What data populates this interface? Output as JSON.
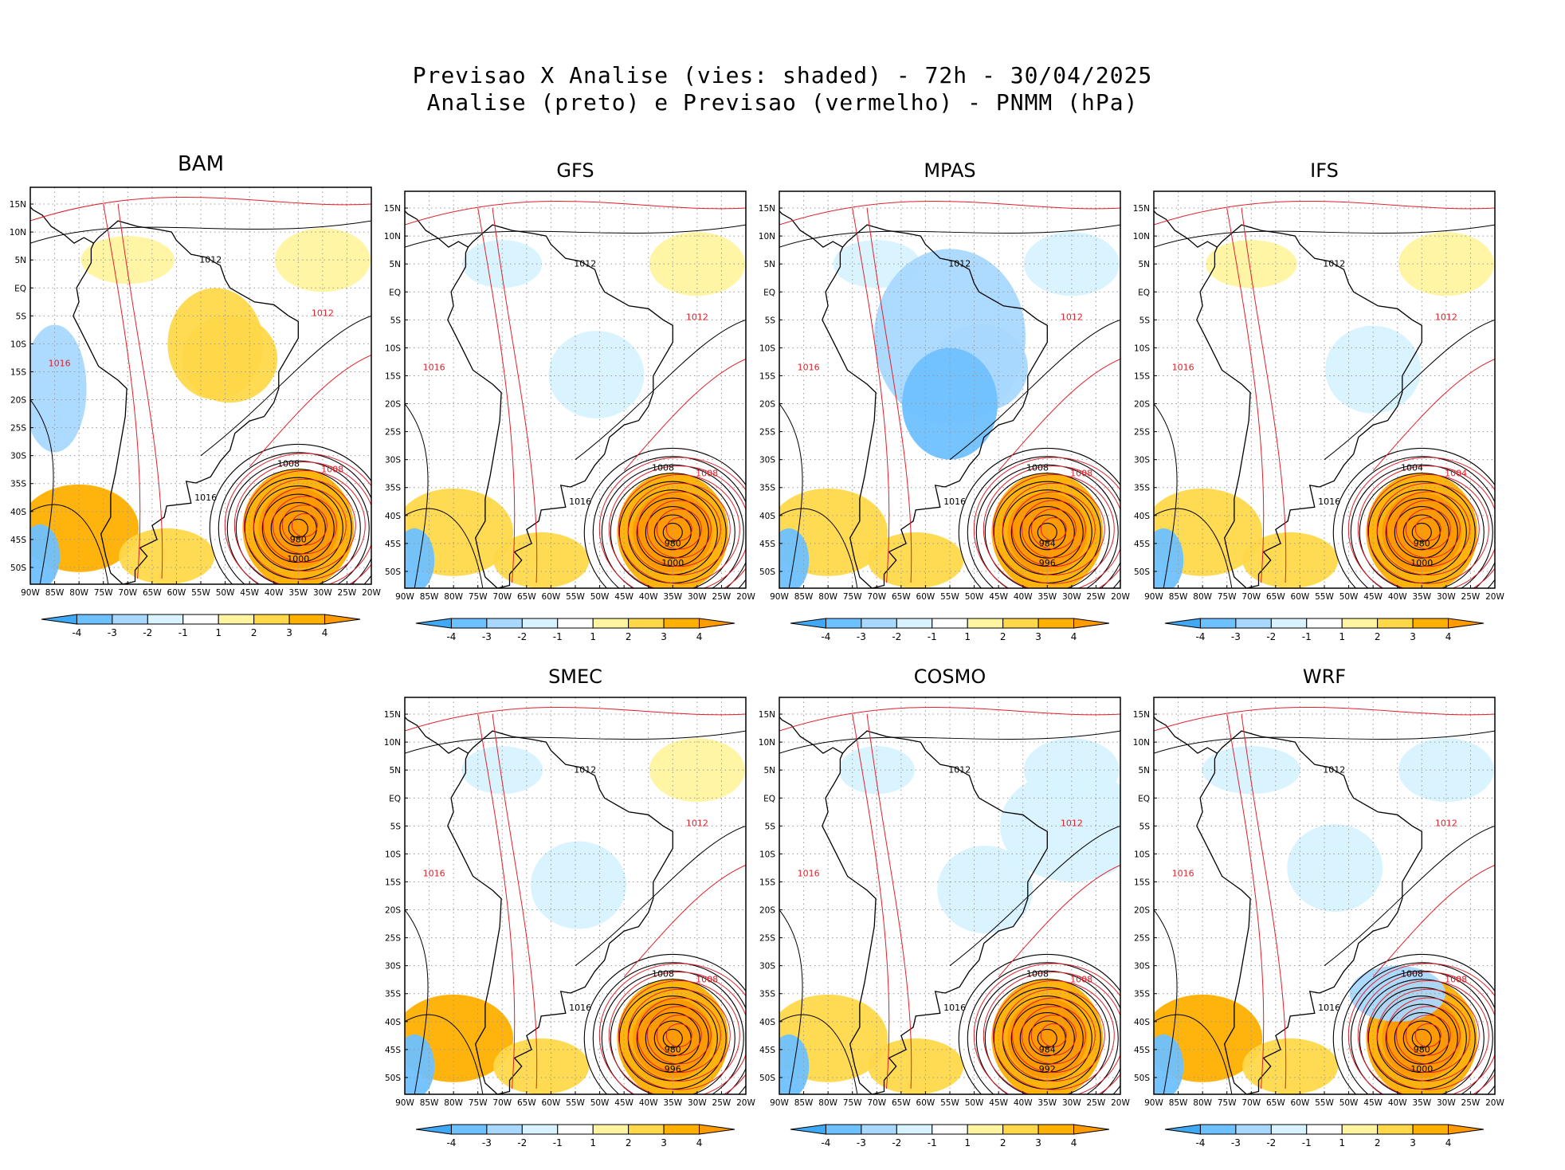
{
  "title": {
    "line1": "Previsao X Analise (vies: shaded) - 72h - 30/04/2025",
    "line2": "Analise (preto) e Previsao (vermelho) - PNMM (hPa)"
  },
  "lat_labels": [
    "15N",
    "10N",
    "5N",
    "EQ",
    "5S",
    "10S",
    "15S",
    "20S",
    "25S",
    "30S",
    "35S",
    "40S",
    "45S",
    "50S"
  ],
  "lon_labels": [
    "90W",
    "85W",
    "80W",
    "75W",
    "70W",
    "65W",
    "60W",
    "55W",
    "50W",
    "45W",
    "40W",
    "35W",
    "30W",
    "25W",
    "20W"
  ],
  "colorbar": {
    "labels": [
      "-4",
      "-3",
      "-2",
      "-1",
      "1",
      "2",
      "3",
      "4"
    ],
    "colors": [
      "#3fa9f5",
      "#6ec1ff",
      "#a9d8ff",
      "#d8f3ff",
      "#ffffff",
      "#fff4a0",
      "#ffd84a",
      "#ffb000",
      "#ff9a00"
    ]
  },
  "colors": {
    "analysis": "#000000",
    "forecast": "#e0202a"
  },
  "panels": [
    {
      "name": "BAM",
      "labels": {
        "a1": "1012",
        "a2": "1016",
        "a3": "1008",
        "a4": "980",
        "a5": "1000",
        "f1": "1012",
        "f2": "1016",
        "f3": "1008"
      }
    },
    {
      "name": "GFS",
      "labels": {
        "a1": "1012",
        "a2": "1016",
        "a3": "1008",
        "a4": "980",
        "a5": "1000",
        "f1": "1012",
        "f2": "1016",
        "f3": "1008"
      }
    },
    {
      "name": "MPAS",
      "labels": {
        "a1": "1012",
        "a2": "1016",
        "a3": "1008",
        "a4": "984",
        "a5": "996",
        "f1": "1012",
        "f2": "1016",
        "f3": "1008"
      }
    },
    {
      "name": "IFS",
      "labels": {
        "a1": "1012",
        "a2": "1016",
        "a3": "1004",
        "a4": "980",
        "a5": "1000",
        "f1": "1012",
        "f2": "1016",
        "f3": "1004"
      }
    },
    {
      "name": "SMEC",
      "labels": {
        "a1": "1012",
        "a2": "1016",
        "a3": "1008",
        "a4": "980",
        "a5": "996",
        "f1": "1012",
        "f2": "1016",
        "f3": "1008"
      }
    },
    {
      "name": "COSMO",
      "labels": {
        "a1": "1012",
        "a2": "1016",
        "a3": "1008",
        "a4": "984",
        "a5": "992",
        "f1": "1012",
        "f2": "1016",
        "f3": "1008"
      }
    },
    {
      "name": "WRF",
      "labels": {
        "a1": "1012",
        "a2": "1016",
        "a3": "1008",
        "a4": "980",
        "a5": "1000",
        "f1": "1012",
        "f2": "1016",
        "f3": "1008"
      }
    }
  ]
}
